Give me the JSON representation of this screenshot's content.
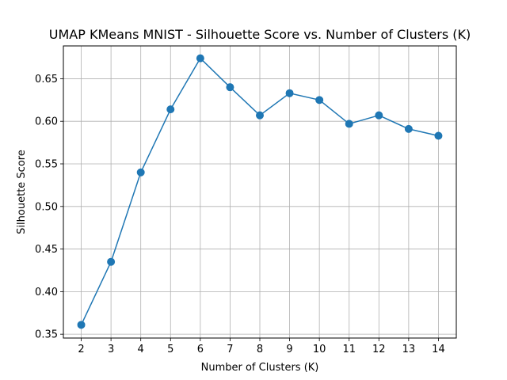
{
  "chart_data": {
    "type": "line",
    "title": "UMAP KMeans MNIST - Silhouette Score vs. Number of Clusters (K)",
    "xlabel": "Number of Clusters (K)",
    "ylabel": "Silhouette Score",
    "x": [
      2,
      3,
      4,
      5,
      6,
      7,
      8,
      9,
      10,
      11,
      12,
      13,
      14
    ],
    "series": [
      {
        "values": [
          0.361,
          0.435,
          0.54,
          0.614,
          0.674,
          0.64,
          0.607,
          0.633,
          0.625,
          0.597,
          0.607,
          0.591,
          0.583
        ]
      }
    ],
    "xlim": [
      1.4,
      14.6
    ],
    "ylim": [
      0.3455,
      0.6885
    ],
    "xticks": [
      2,
      3,
      4,
      5,
      6,
      7,
      8,
      9,
      10,
      11,
      12,
      13,
      14
    ],
    "yticks": [
      0.35,
      0.4,
      0.45,
      0.5,
      0.55,
      0.6,
      0.65
    ],
    "ytick_labels": [
      "0.35",
      "0.40",
      "0.45",
      "0.50",
      "0.55",
      "0.60",
      "0.65"
    ],
    "grid": true,
    "marker": "circle",
    "line_color": "#1f77b4",
    "grid_color": "#b0b0b0"
  }
}
